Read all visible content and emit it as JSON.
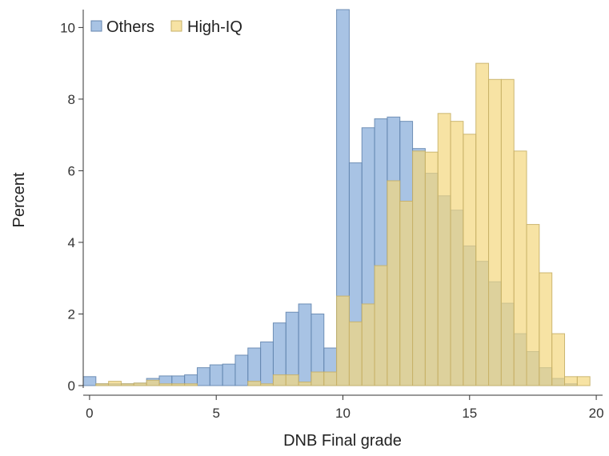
{
  "chart_data": {
    "type": "bar",
    "title": "",
    "xlabel": "DNB Final grade",
    "ylabel": "Percent",
    "xlim": [
      -0.25,
      20.25
    ],
    "ylim": [
      0,
      10.5
    ],
    "x_ticks": [
      0,
      5,
      10,
      15,
      20
    ],
    "y_ticks": [
      0,
      2,
      4,
      6,
      8,
      10
    ],
    "bin_width": 0.5,
    "grid": false,
    "legend_position": "top-left",
    "series": [
      {
        "name": "Others",
        "color": "#7aa3d6",
        "fill_opacity": 0.65,
        "bins": [
          {
            "x": 0.0,
            "value": 0.25
          },
          {
            "x": 0.5,
            "value": 0.05
          },
          {
            "x": 1.0,
            "value": 0.05
          },
          {
            "x": 1.5,
            "value": 0.05
          },
          {
            "x": 2.0,
            "value": 0.07
          },
          {
            "x": 2.5,
            "value": 0.2
          },
          {
            "x": 3.0,
            "value": 0.27
          },
          {
            "x": 3.5,
            "value": 0.27
          },
          {
            "x": 4.0,
            "value": 0.3
          },
          {
            "x": 4.5,
            "value": 0.5
          },
          {
            "x": 5.0,
            "value": 0.58
          },
          {
            "x": 5.5,
            "value": 0.6
          },
          {
            "x": 6.0,
            "value": 0.85
          },
          {
            "x": 6.5,
            "value": 1.05
          },
          {
            "x": 7.0,
            "value": 1.22
          },
          {
            "x": 7.5,
            "value": 1.75
          },
          {
            "x": 8.0,
            "value": 2.05
          },
          {
            "x": 8.5,
            "value": 2.28
          },
          {
            "x": 9.0,
            "value": 2.0
          },
          {
            "x": 9.5,
            "value": 1.05
          },
          {
            "x": 10.0,
            "value": 10.5
          },
          {
            "x": 10.5,
            "value": 6.22
          },
          {
            "x": 11.0,
            "value": 7.2
          },
          {
            "x": 11.5,
            "value": 7.45
          },
          {
            "x": 12.0,
            "value": 7.5
          },
          {
            "x": 12.5,
            "value": 7.38
          },
          {
            "x": 13.0,
            "value": 6.62
          },
          {
            "x": 13.5,
            "value": 5.93
          },
          {
            "x": 14.0,
            "value": 5.3
          },
          {
            "x": 14.5,
            "value": 4.9
          },
          {
            "x": 15.0,
            "value": 3.9
          },
          {
            "x": 15.5,
            "value": 3.47
          },
          {
            "x": 16.0,
            "value": 2.9
          },
          {
            "x": 16.5,
            "value": 2.3
          },
          {
            "x": 17.0,
            "value": 1.45
          },
          {
            "x": 17.5,
            "value": 0.95
          },
          {
            "x": 18.0,
            "value": 0.5
          },
          {
            "x": 18.5,
            "value": 0.2
          },
          {
            "x": 19.0,
            "value": 0.05
          }
        ]
      },
      {
        "name": "High-IQ",
        "color": "#f3d77e",
        "fill_opacity": 0.7,
        "bins": [
          {
            "x": 0.5,
            "value": 0.05
          },
          {
            "x": 1.0,
            "value": 0.12
          },
          {
            "x": 1.5,
            "value": 0.05
          },
          {
            "x": 2.0,
            "value": 0.07
          },
          {
            "x": 2.5,
            "value": 0.15
          },
          {
            "x": 3.0,
            "value": 0.05
          },
          {
            "x": 3.5,
            "value": 0.05
          },
          {
            "x": 4.0,
            "value": 0.05
          },
          {
            "x": 6.5,
            "value": 0.12
          },
          {
            "x": 7.0,
            "value": 0.05
          },
          {
            "x": 7.5,
            "value": 0.3
          },
          {
            "x": 8.0,
            "value": 0.3
          },
          {
            "x": 8.5,
            "value": 0.1
          },
          {
            "x": 9.0,
            "value": 0.38
          },
          {
            "x": 9.5,
            "value": 0.38
          },
          {
            "x": 10.0,
            "value": 2.5
          },
          {
            "x": 10.5,
            "value": 1.78
          },
          {
            "x": 11.0,
            "value": 2.28
          },
          {
            "x": 11.5,
            "value": 3.35
          },
          {
            "x": 12.0,
            "value": 5.72
          },
          {
            "x": 12.5,
            "value": 5.15
          },
          {
            "x": 13.0,
            "value": 6.55
          },
          {
            "x": 13.5,
            "value": 6.52
          },
          {
            "x": 14.0,
            "value": 7.6
          },
          {
            "x": 14.5,
            "value": 7.38
          },
          {
            "x": 15.0,
            "value": 7.02
          },
          {
            "x": 15.5,
            "value": 9.0
          },
          {
            "x": 16.0,
            "value": 8.55
          },
          {
            "x": 16.5,
            "value": 8.55
          },
          {
            "x": 17.0,
            "value": 6.55
          },
          {
            "x": 17.5,
            "value": 4.5
          },
          {
            "x": 18.0,
            "value": 3.15
          },
          {
            "x": 18.5,
            "value": 1.45
          },
          {
            "x": 19.0,
            "value": 0.25
          },
          {
            "x": 19.5,
            "value": 0.25
          }
        ]
      }
    ]
  }
}
